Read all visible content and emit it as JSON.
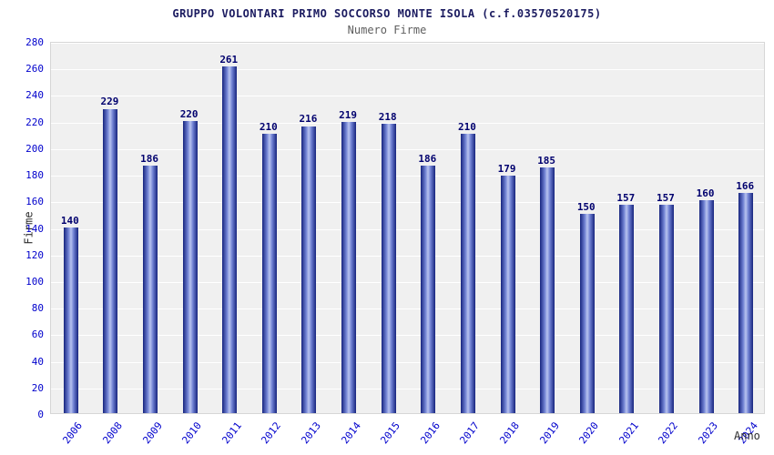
{
  "chart_data": {
    "type": "bar",
    "title": "GRUPPO VOLONTARI PRIMO SOCCORSO MONTE ISOLA (c.f.03570520175)",
    "subtitle": "Numero Firme",
    "xlabel": "Anno",
    "ylabel": "Firme",
    "categories": [
      "2006",
      "2008",
      "2009",
      "2010",
      "2011",
      "2012",
      "2013",
      "2014",
      "2015",
      "2016",
      "2017",
      "2018",
      "2019",
      "2020",
      "2021",
      "2022",
      "2023",
      "2024"
    ],
    "values": [
      140,
      229,
      186,
      220,
      261,
      210,
      216,
      219,
      218,
      186,
      210,
      179,
      185,
      150,
      157,
      157,
      160,
      166
    ],
    "ylim": [
      0,
      280
    ],
    "ytick_step": 20,
    "grid": true,
    "legend": "none",
    "colors": {
      "bar_dark": "#16247e",
      "bar_mid": "#6f80d2",
      "bar_light": "#b8c3ef",
      "plot_bg": "#f0f0f0",
      "gridline": "#ffffff",
      "tick_label": "#0000cc",
      "value_label": "#00006e",
      "title": "#1b1b60",
      "subtitle": "#5f5f5f",
      "axis_title": "#2e2e2e"
    }
  }
}
